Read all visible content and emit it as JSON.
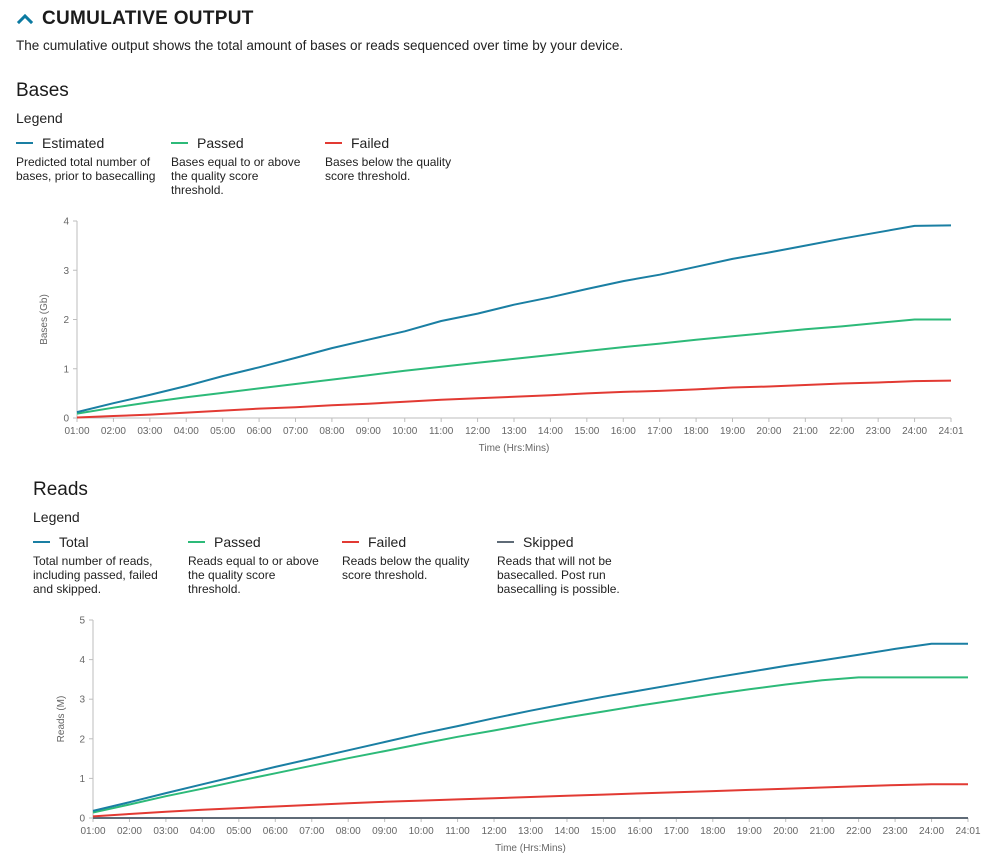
{
  "header": {
    "title": "CUMULATIVE OUTPUT",
    "icon": "chevron-up-icon",
    "accent": "#0b7aa1"
  },
  "description": "The cumulative output shows the total amount of bases or reads sequenced over time by your device.",
  "bases": {
    "title": "Bases",
    "legend_title": "Legend",
    "legend": [
      {
        "label": "Estimated",
        "color": "#1a7fa3",
        "description": "Predicted total number of bases, prior to basecalling"
      },
      {
        "label": "Passed",
        "color": "#2dba79",
        "description": "Bases equal to or above the quality score threshold."
      },
      {
        "label": "Failed",
        "color": "#e23a33",
        "description": "Bases below the quality score threshold."
      }
    ]
  },
  "reads": {
    "title": "Reads",
    "legend_title": "Legend",
    "legend": [
      {
        "label": "Total",
        "color": "#1a7fa3",
        "description": "Total number of reads, including passed, failed and skipped."
      },
      {
        "label": "Passed",
        "color": "#2dba79",
        "description": "Reads equal to or above the quality score threshold."
      },
      {
        "label": "Failed",
        "color": "#e23a33",
        "description": "Reads below the quality score threshold."
      },
      {
        "label": "Skipped",
        "color": "#5f6b77",
        "description": "Reads that will not be basecalled. Post run basecalling is possible."
      }
    ]
  },
  "chart_data": [
    {
      "type": "line",
      "xlabel": "Time (Hrs:Mins)",
      "ylabel": "Bases (Gb)",
      "ylim": [
        0,
        4
      ],
      "yticks": [
        0,
        1,
        2,
        3,
        4
      ],
      "categories": [
        "01:00",
        "02:00",
        "03:00",
        "04:00",
        "05:00",
        "06:00",
        "07:00",
        "08:00",
        "09:00",
        "10:00",
        "11:00",
        "12:00",
        "13:00",
        "14:00",
        "15:00",
        "16:00",
        "17:00",
        "18:00",
        "19:00",
        "20:00",
        "21:00",
        "22:00",
        "23:00",
        "24:00",
        "24:01"
      ],
      "grid": false,
      "series": [
        {
          "name": "Estimated",
          "color": "#1a7fa3",
          "values": [
            0.12,
            0.3,
            0.47,
            0.65,
            0.85,
            1.03,
            1.22,
            1.42,
            1.59,
            1.76,
            1.97,
            2.12,
            2.3,
            2.45,
            2.62,
            2.78,
            2.91,
            3.07,
            3.23,
            3.36,
            3.5,
            3.64,
            3.77,
            3.9,
            3.91
          ]
        },
        {
          "name": "Passed",
          "color": "#2dba79",
          "values": [
            0.09,
            0.21,
            0.32,
            0.42,
            0.51,
            0.6,
            0.69,
            0.78,
            0.87,
            0.96,
            1.04,
            1.12,
            1.2,
            1.28,
            1.36,
            1.44,
            1.51,
            1.59,
            1.66,
            1.73,
            1.8,
            1.86,
            1.93,
            2.0,
            2.0
          ]
        },
        {
          "name": "Failed",
          "color": "#e23a33",
          "values": [
            0.01,
            0.04,
            0.07,
            0.11,
            0.15,
            0.19,
            0.22,
            0.26,
            0.29,
            0.33,
            0.37,
            0.4,
            0.43,
            0.46,
            0.5,
            0.53,
            0.55,
            0.58,
            0.62,
            0.64,
            0.67,
            0.7,
            0.72,
            0.75,
            0.76
          ]
        }
      ]
    },
    {
      "type": "line",
      "xlabel": "Time (Hrs:Mins)",
      "ylabel": "Reads (M)",
      "ylim": [
        0,
        5
      ],
      "yticks": [
        0,
        1,
        2,
        3,
        4,
        5
      ],
      "categories": [
        "01:00",
        "02:00",
        "03:00",
        "04:00",
        "05:00",
        "06:00",
        "07:00",
        "08:00",
        "09:00",
        "10:00",
        "11:00",
        "12:00",
        "13:00",
        "14:00",
        "15:00",
        "16:00",
        "17:00",
        "18:00",
        "19:00",
        "20:00",
        "21:00",
        "22:00",
        "23:00",
        "24:00",
        "24:01"
      ],
      "grid": false,
      "series": [
        {
          "name": "Total",
          "color": "#1a7fa3",
          "values": [
            0.18,
            0.4,
            0.63,
            0.85,
            1.07,
            1.29,
            1.5,
            1.71,
            1.92,
            2.13,
            2.32,
            2.52,
            2.71,
            2.89,
            3.06,
            3.22,
            3.38,
            3.54,
            3.69,
            3.84,
            3.98,
            4.12,
            4.27,
            4.4,
            4.4
          ]
        },
        {
          "name": "Passed",
          "color": "#2dba79",
          "values": [
            0.14,
            0.34,
            0.55,
            0.74,
            0.94,
            1.13,
            1.32,
            1.51,
            1.69,
            1.87,
            2.05,
            2.21,
            2.38,
            2.54,
            2.69,
            2.84,
            2.98,
            3.12,
            3.25,
            3.37,
            3.48,
            3.55,
            3.55,
            3.55,
            3.55
          ]
        },
        {
          "name": "Failed",
          "color": "#e23a33",
          "values": [
            0.04,
            0.1,
            0.16,
            0.21,
            0.25,
            0.29,
            0.33,
            0.37,
            0.41,
            0.44,
            0.47,
            0.5,
            0.53,
            0.56,
            0.59,
            0.62,
            0.65,
            0.68,
            0.71,
            0.74,
            0.77,
            0.8,
            0.83,
            0.85,
            0.85
          ]
        },
        {
          "name": "Skipped",
          "color": "#5f6b77",
          "values": [
            0,
            0,
            0,
            0,
            0,
            0,
            0,
            0,
            0,
            0,
            0,
            0,
            0,
            0,
            0,
            0,
            0,
            0,
            0,
            0,
            0,
            0,
            0,
            0,
            0
          ]
        }
      ]
    }
  ]
}
